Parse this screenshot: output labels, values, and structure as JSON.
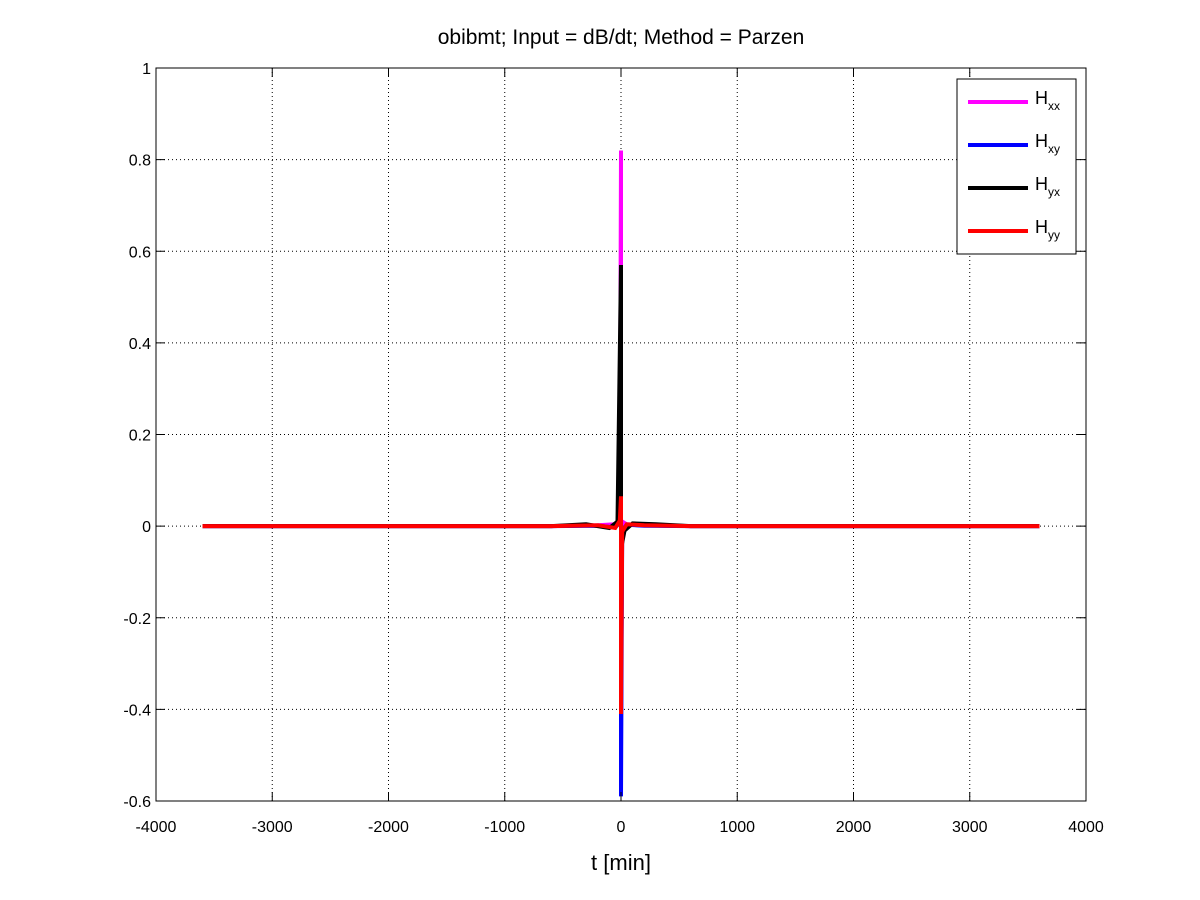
{
  "chart_data": {
    "type": "line",
    "title": "obibmt; Input = dB/dt; Method = Parzen",
    "xlabel": "t [min]",
    "ylabel": "",
    "xlim": [
      -4000,
      4000
    ],
    "ylim": [
      -0.6,
      1
    ],
    "xticks": [
      -4000,
      -3000,
      -2000,
      -1000,
      0,
      1000,
      2000,
      3000,
      4000
    ],
    "xtick_labels": [
      "-4000",
      "-3000",
      "-2000",
      "-1000",
      "0",
      "1000",
      "2000",
      "3000",
      "4000"
    ],
    "yticks": [
      -0.6,
      -0.4,
      -0.2,
      0,
      0.2,
      0.4,
      0.6,
      0.8,
      1
    ],
    "ytick_labels": [
      "-0.6",
      "-0.4",
      "-0.2",
      "0",
      "0.2",
      "0.4",
      "0.6",
      "0.8",
      "1"
    ],
    "grid": true,
    "legend_position": "top-right",
    "series": [
      {
        "name": "H_xx",
        "label_main": "H",
        "label_sub": "xx",
        "color": "#ff00ff",
        "x": [
          -3600,
          -600,
          -200,
          -50,
          -10,
          0,
          0,
          10,
          50,
          200,
          600,
          3600
        ],
        "y": [
          0,
          0,
          0.002,
          0.004,
          0.01,
          0.82,
          -0.25,
          0.01,
          0.004,
          0.002,
          0,
          0
        ]
      },
      {
        "name": "H_xy",
        "label_main": "H",
        "label_sub": "xy",
        "color": "#0000ff",
        "x": [
          -3600,
          -600,
          -200,
          -50,
          -10,
          0,
          0,
          10,
          50,
          200,
          600,
          3600
        ],
        "y": [
          0,
          0,
          0.001,
          -0.003,
          0.008,
          0.06,
          -0.59,
          -0.008,
          0.003,
          0.001,
          0,
          0
        ]
      },
      {
        "name": "H_yx",
        "label_main": "H",
        "label_sub": "yx",
        "color": "#000000",
        "x": [
          -3600,
          -600,
          -300,
          -100,
          -30,
          0,
          0,
          30,
          100,
          300,
          600,
          3600
        ],
        "y": [
          0,
          0,
          0.004,
          -0.004,
          0.01,
          0.57,
          -0.05,
          -0.01,
          0.006,
          0.004,
          0,
          0
        ]
      },
      {
        "name": "H_yy",
        "label_main": "H",
        "label_sub": "yy",
        "color": "#ff0000",
        "x": [
          -3600,
          -600,
          -200,
          -50,
          -10,
          0,
          0,
          10,
          50,
          200,
          600,
          3600
        ],
        "y": [
          0,
          0,
          0.002,
          -0.004,
          0.012,
          0.065,
          -0.41,
          -0.012,
          0.004,
          0.002,
          0,
          0
        ]
      }
    ]
  }
}
